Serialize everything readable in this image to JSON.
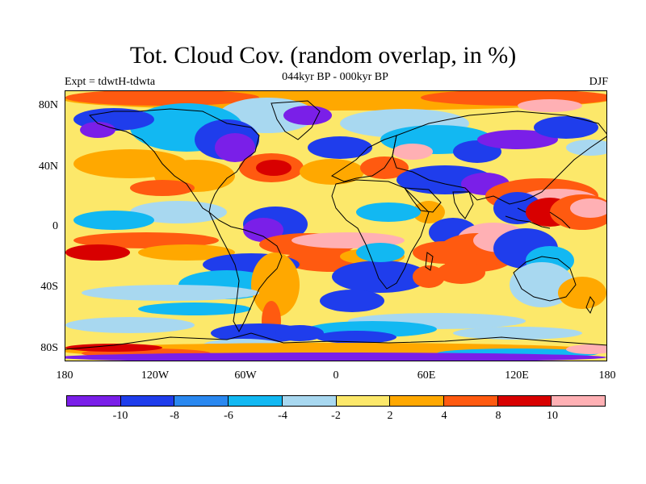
{
  "header": {
    "title": "Tot. Cloud Cov. (random overlap, in %)",
    "subtitle": "044kyr BP - 000kyr BP",
    "experiment": "Expt = tdwtH-tdwta",
    "season": "DJF"
  },
  "map": {
    "lat_labels": [
      "80N",
      "40N",
      "0",
      "40S",
      "80S"
    ],
    "lon_labels": [
      "180",
      "120W",
      "60W",
      "0",
      "60E",
      "120E",
      "180"
    ],
    "palette": {
      "deep_purple": "#7a1fe8",
      "blue": "#1f3dec",
      "mid_blue": "#2a88f0",
      "cyan": "#12b8f2",
      "light_blue": "#a8d8f0",
      "yellow": "#fce86a",
      "orange": "#ffa800",
      "red_orange": "#ff5a10",
      "red": "#d80000",
      "pink": "#ffb0b4"
    }
  },
  "colorbar": {
    "colors": [
      "#7a1fe8",
      "#1f3dec",
      "#2a88f0",
      "#12b8f2",
      "#a8d8f0",
      "#fce86a",
      "#ffa800",
      "#ff5a10",
      "#d80000",
      "#ffb0b4"
    ],
    "labels": [
      "-10",
      "-8",
      "-6",
      "-4",
      "-2",
      "2",
      "4",
      "8",
      "10"
    ]
  }
}
